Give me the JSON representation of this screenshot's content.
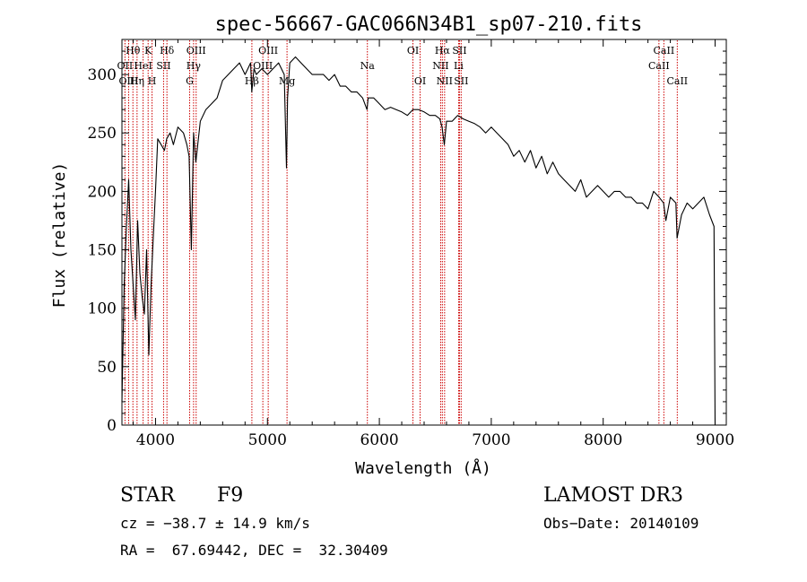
{
  "chart_data": {
    "type": "line",
    "title": "spec-56667-GAC066N34B1_sp07-210.fits",
    "xlabel": "Wavelength (Å)",
    "ylabel": "Flux (relative)",
    "xlim": [
      3700,
      9100
    ],
    "ylim": [
      0,
      330
    ],
    "xticks": [
      4000,
      5000,
      6000,
      7000,
      8000,
      9000
    ],
    "yticks": [
      0,
      50,
      100,
      150,
      200,
      250,
      300
    ],
    "line_color": "#000000",
    "marker_color": "#cc0000",
    "grid": false,
    "spectrum": {
      "x": [
        3700,
        3720,
        3740,
        3760,
        3780,
        3800,
        3820,
        3840,
        3860,
        3880,
        3900,
        3920,
        3940,
        3960,
        3980,
        4000,
        4020,
        4050,
        4080,
        4100,
        4130,
        4160,
        4200,
        4250,
        4280,
        4300,
        4320,
        4340,
        4360,
        4400,
        4450,
        4500,
        4550,
        4600,
        4650,
        4700,
        4750,
        4800,
        4850,
        4860,
        4880,
        4900,
        4950,
        5000,
        5050,
        5100,
        5150,
        5170,
        5180,
        5200,
        5250,
        5300,
        5350,
        5400,
        5450,
        5500,
        5550,
        5600,
        5650,
        5700,
        5750,
        5800,
        5850,
        5890,
        5900,
        5950,
        6000,
        6050,
        6100,
        6150,
        6200,
        6250,
        6300,
        6350,
        6400,
        6450,
        6500,
        6540,
        6560,
        6580,
        6600,
        6650,
        6700,
        6750,
        6800,
        6850,
        6900,
        6950,
        7000,
        7050,
        7100,
        7150,
        7200,
        7250,
        7300,
        7350,
        7400,
        7450,
        7500,
        7550,
        7600,
        7650,
        7700,
        7750,
        7800,
        7850,
        7900,
        7950,
        8000,
        8050,
        8100,
        8150,
        8200,
        8250,
        8300,
        8350,
        8400,
        8450,
        8500,
        8540,
        8560,
        8600,
        8650,
        8660,
        8700,
        8750,
        8800,
        8850,
        8900,
        8950,
        8990,
        9000
      ],
      "y": [
        20,
        120,
        170,
        210,
        150,
        120,
        90,
        175,
        130,
        110,
        95,
        150,
        60,
        120,
        160,
        200,
        245,
        240,
        235,
        245,
        250,
        240,
        255,
        250,
        240,
        230,
        150,
        250,
        225,
        260,
        270,
        275,
        280,
        295,
        300,
        305,
        310,
        300,
        310,
        285,
        305,
        300,
        305,
        300,
        305,
        310,
        300,
        220,
        280,
        310,
        315,
        310,
        305,
        300,
        300,
        300,
        295,
        300,
        290,
        290,
        285,
        285,
        280,
        270,
        280,
        280,
        275,
        270,
        272,
        270,
        268,
        265,
        270,
        270,
        268,
        265,
        265,
        262,
        255,
        240,
        260,
        260,
        265,
        262,
        260,
        258,
        255,
        250,
        255,
        250,
        245,
        240,
        230,
        235,
        225,
        235,
        220,
        230,
        215,
        225,
        215,
        210,
        205,
        200,
        210,
        195,
        200,
        205,
        200,
        195,
        200,
        200,
        195,
        195,
        190,
        190,
        185,
        200,
        195,
        190,
        175,
        195,
        190,
        160,
        180,
        190,
        185,
        190,
        195,
        180,
        170,
        0
      ]
    },
    "spectral_lines": [
      {
        "label": "Hθ",
        "x": 3798,
        "row": 0
      },
      {
        "label": "OII",
        "x": 3727,
        "row": 1
      },
      {
        "label": "OIII",
        "x": 3760,
        "row": 2
      },
      {
        "label": "K",
        "x": 3934,
        "row": 0
      },
      {
        "label": "HeI",
        "x": 3889,
        "row": 1
      },
      {
        "label": "Hη",
        "x": 3835,
        "row": 2
      },
      {
        "label": "SII",
        "x": 4072,
        "row": 1
      },
      {
        "label": "H",
        "x": 3969,
        "row": 2
      },
      {
        "label": "Hδ",
        "x": 4102,
        "row": 0
      },
      {
        "label": "OIII",
        "x": 4363,
        "row": 0
      },
      {
        "label": "Hγ",
        "x": 4340,
        "row": 1
      },
      {
        "label": "G",
        "x": 4305,
        "row": 2
      },
      {
        "label": "OIII",
        "x": 5007,
        "row": 0
      },
      {
        "label": "OIII",
        "x": 4959,
        "row": 1
      },
      {
        "label": "Hβ",
        "x": 4861,
        "row": 2
      },
      {
        "label": "Mg",
        "x": 5175,
        "row": 2
      },
      {
        "label": "Na",
        "x": 5893,
        "row": 1
      },
      {
        "label": "OI",
        "x": 6300,
        "row": 0
      },
      {
        "label": "OI",
        "x": 6364,
        "row": 2
      },
      {
        "label": "Hα",
        "x": 6563,
        "row": 0
      },
      {
        "label": "SII",
        "x": 6716,
        "row": 0
      },
      {
        "label": "NII",
        "x": 6548,
        "row": 1
      },
      {
        "label": "Li",
        "x": 6708,
        "row": 1
      },
      {
        "label": "NII",
        "x": 6583,
        "row": 2
      },
      {
        "label": "SII",
        "x": 6731,
        "row": 2
      },
      {
        "label": "CaII",
        "x": 8542,
        "row": 0
      },
      {
        "label": "CaII",
        "x": 8498,
        "row": 1
      },
      {
        "label": "CaII",
        "x": 8662,
        "row": 2
      }
    ]
  },
  "info": {
    "class": "STAR",
    "subclass": "F9",
    "release": "LAMOST DR3",
    "cz": "cz = −38.7 ± 14.9 km/s",
    "obs_date": "Obs−Date: 20140109",
    "coords": "RA =  67.69442, DEC =  32.30409"
  }
}
